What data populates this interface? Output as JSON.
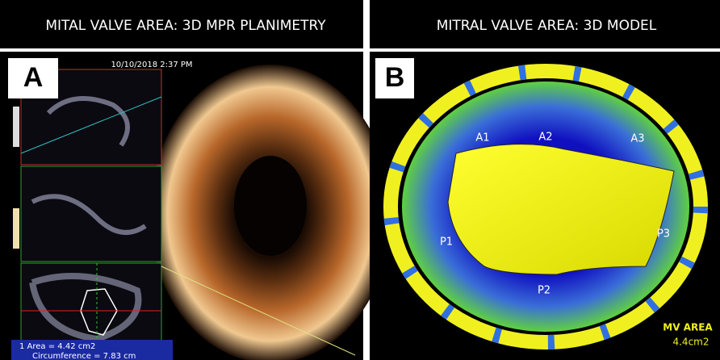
{
  "panels": [
    {
      "title": "MITAL VALVE AREA: 3D MPR PLANIMETRY",
      "letter": "A",
      "timestamp": "10/10/2018 2:37 PM",
      "measurement": {
        "area": "1  Area = 4.42 cm2",
        "circumference": "Circumference = 7.83 cm"
      }
    },
    {
      "title": "MITRAL VALVE AREA: 3D MODEL",
      "letter": "B",
      "scallops": [
        "A1",
        "A2",
        "A3",
        "P1",
        "P2",
        "P3"
      ],
      "result": {
        "label": "MV AREA",
        "value": "4.4cm2"
      }
    }
  ]
}
